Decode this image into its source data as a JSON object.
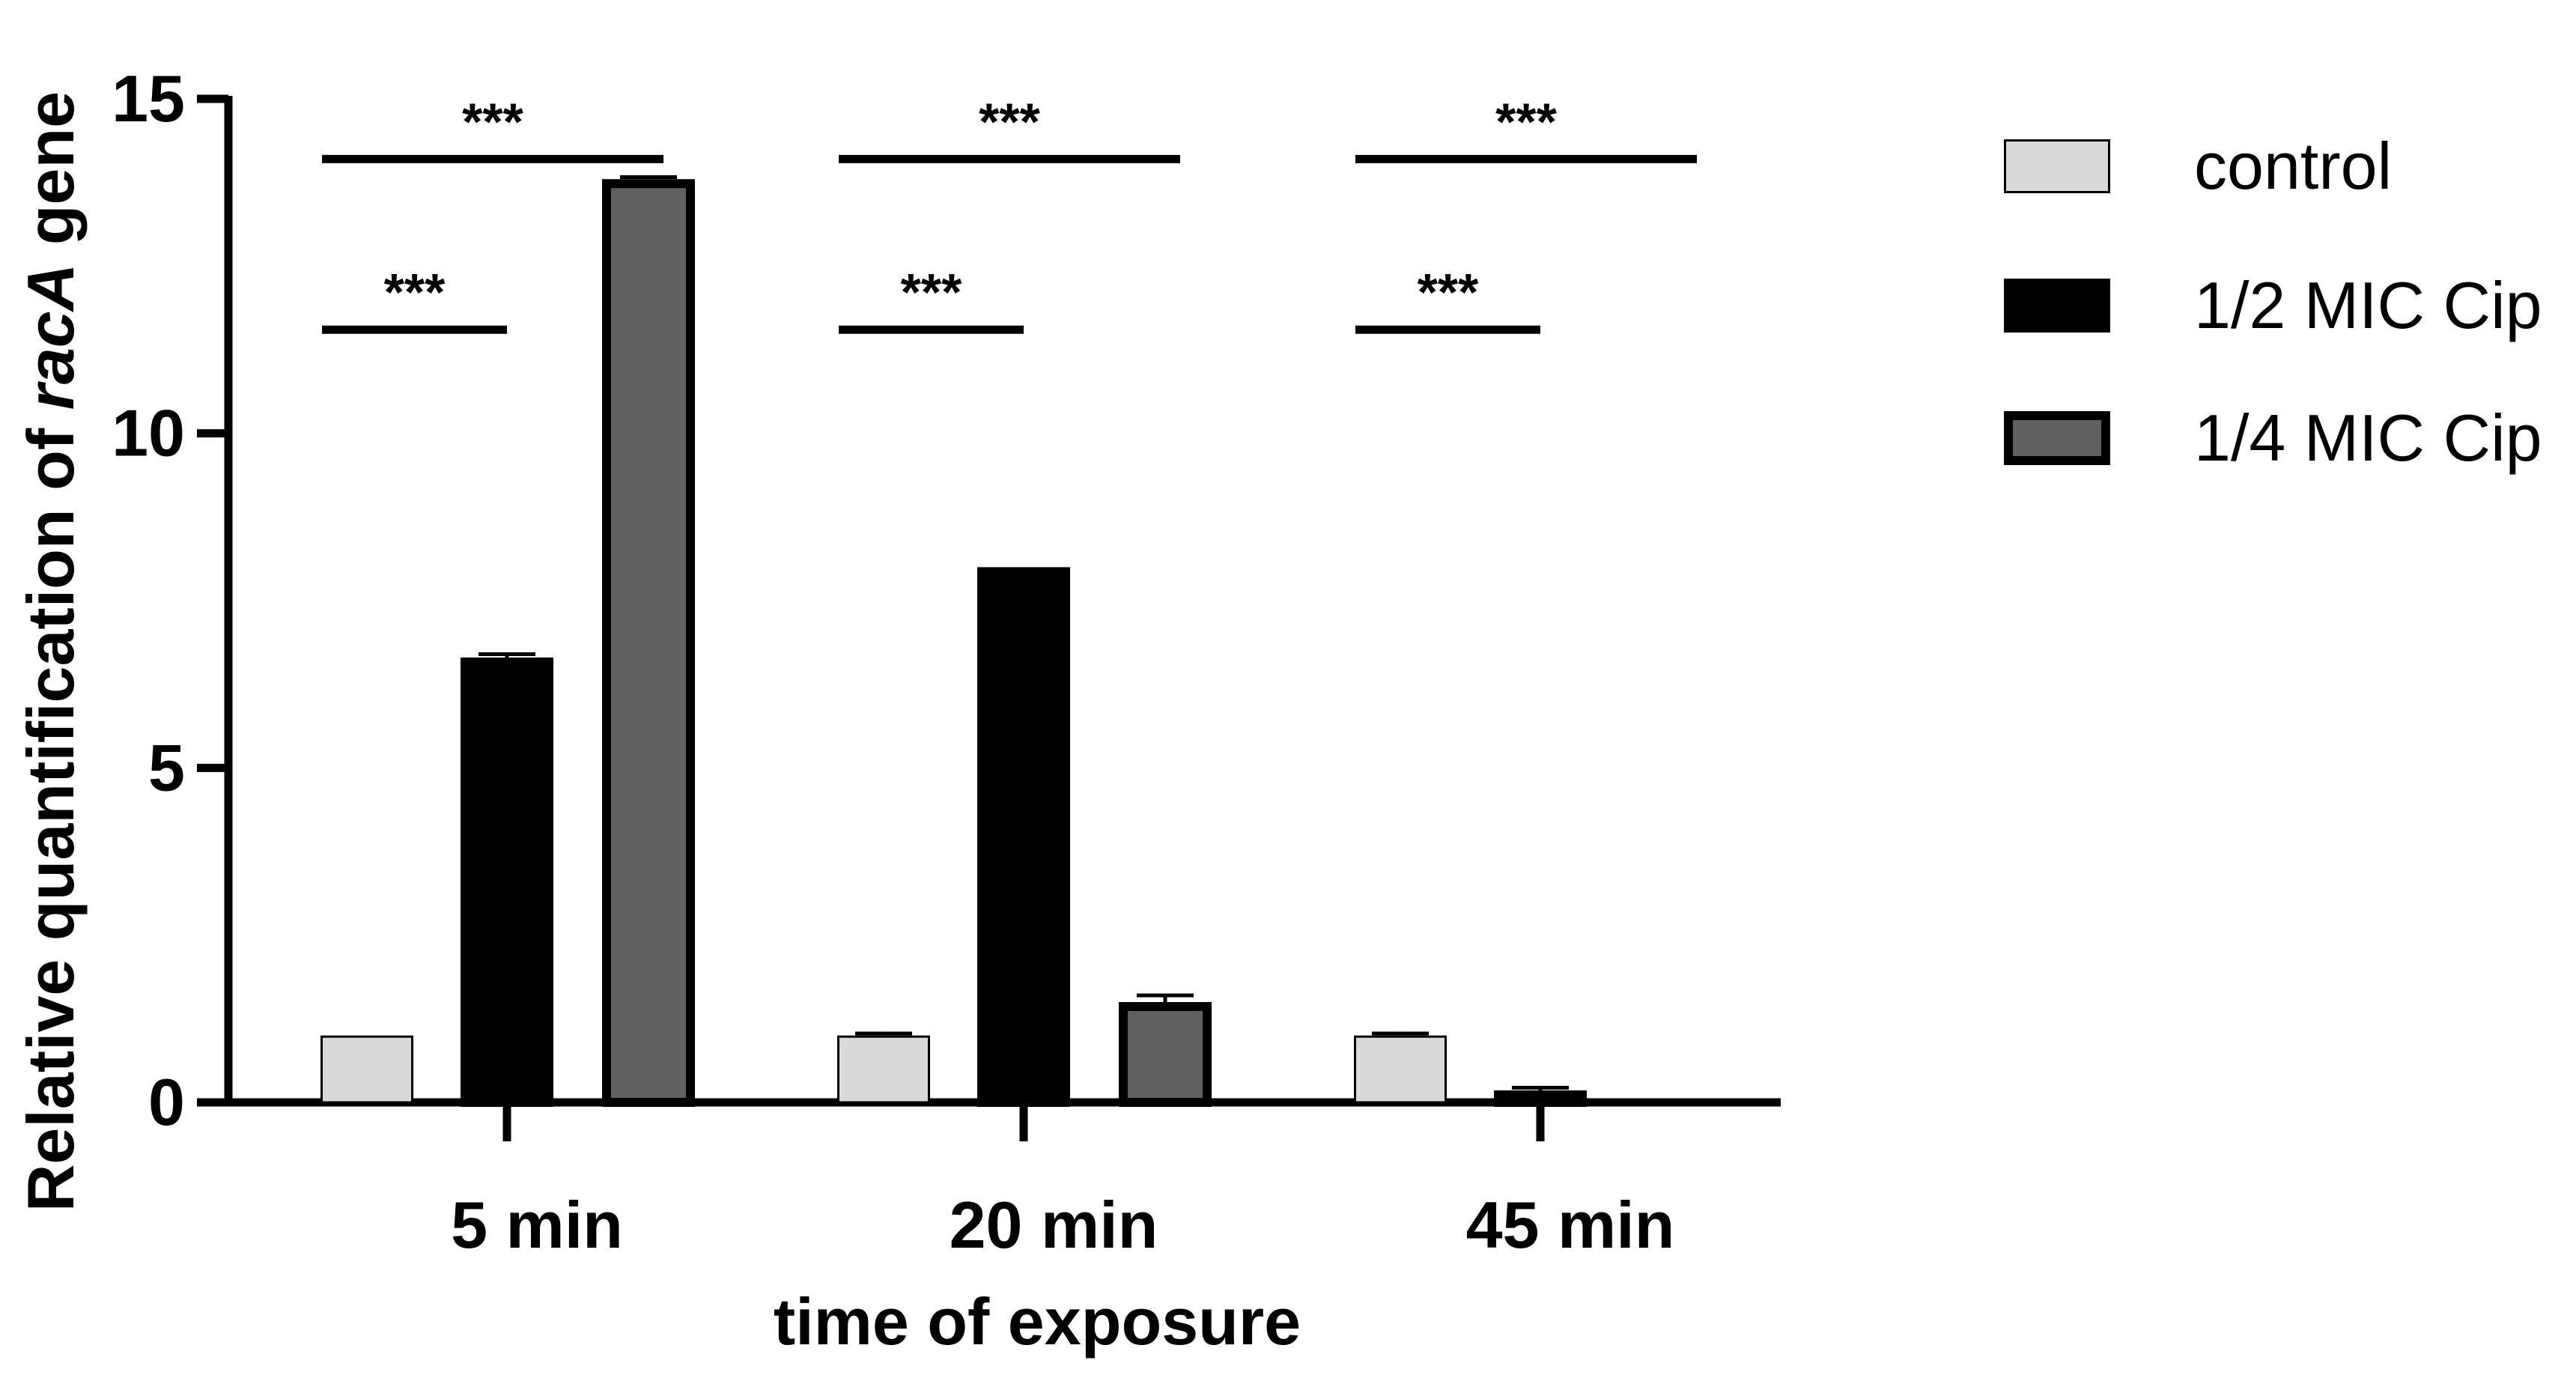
{
  "chart_data": {
    "type": "bar",
    "categories": [
      "5 min",
      "20 min",
      "45 min"
    ],
    "series": [
      {
        "name": "control",
        "values": [
          1.0,
          1.0,
          1.0
        ],
        "errors": [
          0.0,
          0.03,
          0.03
        ],
        "fill": "#d9d9d9",
        "stroke": "#000000"
      },
      {
        "name": "1/2 MIC Cip",
        "values": [
          6.65,
          8.0,
          0.18
        ],
        "errors": [
          0.05,
          0.0,
          0.04
        ],
        "fill": "#000000",
        "stroke": "#000000"
      },
      {
        "name": "1/4 MIC Cip",
        "values": [
          13.8,
          1.5,
          0.0
        ],
        "errors": [
          0.03,
          0.1,
          0.0
        ],
        "fill": "#606060",
        "stroke": "#000000"
      }
    ],
    "xlabel": "time of exposure",
    "ylabel_prefix": "Relative quantification of ",
    "ylabel_gene": "racA",
    "ylabel_suffix": " gene",
    "ylim": [
      0,
      15
    ],
    "yticks": [
      "0",
      "5",
      "10",
      "15"
    ],
    "grid": false,
    "legend_position": "right",
    "significance": [
      {
        "category": "5 min",
        "from": "control",
        "to": "1/2 MIC Cip",
        "level": 11.55,
        "label": "***"
      },
      {
        "category": "5 min",
        "from": "control",
        "to": "1/4 MIC Cip",
        "level": 14.1,
        "label": "***"
      },
      {
        "category": "20 min",
        "from": "control",
        "to": "1/2 MIC Cip",
        "level": 11.55,
        "label": "***"
      },
      {
        "category": "20 min",
        "from": "control",
        "to": "1/4 MIC Cip",
        "level": 14.1,
        "label": "***"
      },
      {
        "category": "45 min",
        "from": "control",
        "to": "1/2 MIC Cip",
        "level": 11.55,
        "label": "***"
      },
      {
        "category": "45 min",
        "from": "control",
        "to": "1/4 MIC Cip",
        "level": 14.1,
        "label": "***"
      }
    ]
  }
}
